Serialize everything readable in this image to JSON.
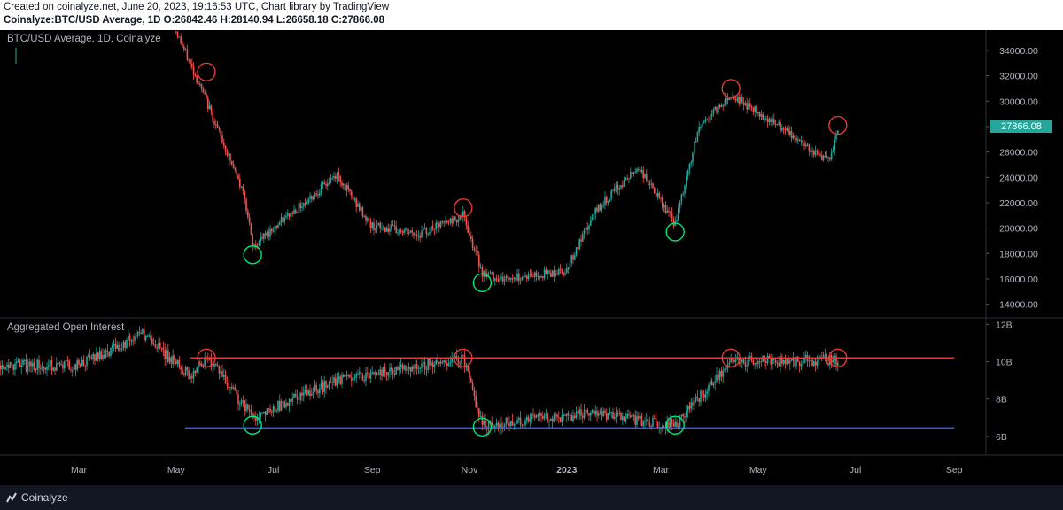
{
  "header": {
    "line1": "Created on coinalyze.net, June 20, 2023, 19:16:53 UTC, Chart library by TradingView",
    "line2": "Coinalyze:BTC/USD Average, 1D O:26842.46 H:28140.94 L:26658.18 C:27866.08"
  },
  "footer": {
    "brand": "Coinalyze"
  },
  "chart_data": [
    {
      "type": "candlestick",
      "title": "BTC/USD Average, 1D, Coinalyze",
      "last_price": "27866.08",
      "y_ticks": [
        "34000.00",
        "32000.00",
        "30000.00",
        "28000.00",
        "26000.00",
        "24000.00",
        "22000.00",
        "20000.00",
        "18000.00",
        "16000.00",
        "14000.00"
      ],
      "ylim": [
        13000,
        35600
      ],
      "x_labels": [
        "Mar",
        "May",
        "Jul",
        "Sep",
        "Nov",
        "2023",
        "Mar",
        "May",
        "Jul",
        "Sep"
      ],
      "series": [
        {
          "name": "close",
          "x": [
            "2022-05-01",
            "2022-05-20",
            "2022-06-13",
            "2022-06-18",
            "2022-07-01",
            "2022-08-10",
            "2022-08-31",
            "2022-09-30",
            "2022-10-28",
            "2022-11-09",
            "2022-11-21",
            "2022-12-31",
            "2023-01-20",
            "2023-02-15",
            "2023-03-10",
            "2023-03-25",
            "2023-04-14",
            "2023-05-05",
            "2023-06-15",
            "2023-06-20"
          ],
          "values": [
            35500,
            30000,
            22500,
            18500,
            20000,
            24200,
            20200,
            19500,
            21000,
            16500,
            16000,
            16600,
            21500,
            24800,
            20300,
            28000,
            30500,
            28800,
            25200,
            27866
          ]
        }
      ],
      "annotations": {
        "red_circles": [
          {
            "x": "2022-05-20",
            "y": 32300
          },
          {
            "x": "2022-10-28",
            "y": 21600
          },
          {
            "x": "2023-04-14",
            "y": 31000
          },
          {
            "x": "2023-06-20",
            "y": 28100
          }
        ],
        "green_circles": [
          {
            "x": "2022-06-18",
            "y": 17900
          },
          {
            "x": "2022-11-09",
            "y": 15700
          },
          {
            "x": "2023-03-10",
            "y": 19700
          }
        ]
      }
    },
    {
      "type": "candlestick",
      "title": "Aggregated Open Interest",
      "y_ticks": [
        "12B",
        "10B",
        "8B",
        "6B"
      ],
      "ylim": [
        5,
        12.3
      ],
      "series": [
        {
          "name": "close",
          "x": [
            "2022-03-01",
            "2022-04-10",
            "2022-05-10",
            "2022-05-20",
            "2022-06-18",
            "2022-08-10",
            "2022-10-28",
            "2022-11-09",
            "2023-01-15",
            "2023-03-10",
            "2023-04-14",
            "2023-06-20"
          ],
          "values": [
            9.8,
            11.5,
            9.2,
            10.3,
            7.0,
            9.0,
            10.2,
            6.6,
            7.2,
            6.6,
            10.0,
            10.1
          ]
        }
      ],
      "annotations": {
        "red_line": 10.2,
        "blue_line": 6.45,
        "red_circles": [
          {
            "x": "2022-05-20",
            "y": 10.2
          },
          {
            "x": "2022-10-28",
            "y": 10.2
          },
          {
            "x": "2023-04-14",
            "y": 10.2
          },
          {
            "x": "2023-06-20",
            "y": 10.2
          }
        ],
        "green_circles": [
          {
            "x": "2022-06-18",
            "y": 6.6
          },
          {
            "x": "2022-11-09",
            "y": 6.5
          },
          {
            "x": "2023-03-10",
            "y": 6.6
          }
        ]
      }
    }
  ],
  "colors": {
    "up": "#26a69a",
    "down": "#ef5350",
    "grid": "#1e222d",
    "red_line": "#e53935",
    "blue_line": "#2962ff",
    "green_circle": "#00e676"
  }
}
